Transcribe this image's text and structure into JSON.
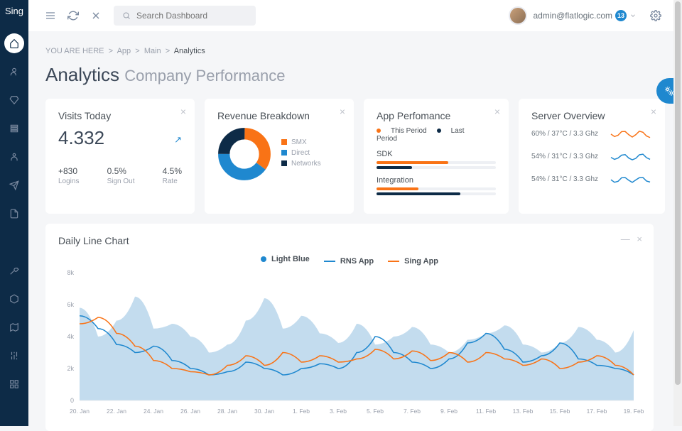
{
  "brand": "Sing",
  "search_placeholder": "Search Dashboard",
  "user": {
    "email": "admin@flatlogic.com",
    "badge": "13"
  },
  "breadcrumb": {
    "prefix": "YOU ARE HERE",
    "parts": [
      "App",
      "Main"
    ],
    "current": "Analytics"
  },
  "title": {
    "main": "Analytics",
    "sub": "Company Performance"
  },
  "visits": {
    "title": "Visits Today",
    "value": "4.332",
    "stats": [
      {
        "value": "+830",
        "label": "Logins"
      },
      {
        "value": "0.5%",
        "label": "Sign Out"
      },
      {
        "value": "4.5%",
        "label": "Rate"
      }
    ]
  },
  "revenue": {
    "title": "Revenue Breakdown",
    "donut": {
      "segments": [
        {
          "label": "SMX",
          "color": "#f97316",
          "pct": 35
        },
        {
          "label": "Direct",
          "color": "#1f88cf",
          "pct": 40
        },
        {
          "label": "Networks",
          "color": "#0d2b47",
          "pct": 25
        }
      ],
      "inner_color": "#ffffff"
    }
  },
  "performance": {
    "title": "App Perfomance",
    "legend": [
      {
        "label": "This Period",
        "color": "#f97316"
      },
      {
        "label": "Last Period",
        "color": "#0d2b47"
      }
    ],
    "items": [
      {
        "label": "SDK",
        "bars": [
          {
            "color": "#f97316",
            "pct": 60
          },
          {
            "color": "#0d2b47",
            "pct": 30
          }
        ]
      },
      {
        "label": "Integration",
        "bars": [
          {
            "color": "#f97316",
            "pct": 35
          },
          {
            "color": "#0d2b47",
            "pct": 70
          }
        ]
      }
    ]
  },
  "server": {
    "title": "Server Overview",
    "rows": [
      {
        "text": "60% / 37°C / 3.3 Ghz",
        "color": "#f97316"
      },
      {
        "text": "54% / 31°C / 3.3 Ghz",
        "color": "#1f88cf"
      },
      {
        "text": "54% / 31°C / 3.3 Ghz",
        "color": "#1f88cf"
      }
    ]
  },
  "line_chart": {
    "title_prefix": "Daily ",
    "title_bold": "Line Chart",
    "legend": [
      {
        "label": "Light Blue",
        "type": "dot",
        "color": "#1f88cf"
      },
      {
        "label": "RNS App",
        "type": "line",
        "color": "#1f88cf"
      },
      {
        "label": "Sing App",
        "type": "line",
        "color": "#f97316"
      }
    ],
    "y_ticks": [
      "0",
      "2k",
      "4k",
      "6k",
      "8k"
    ],
    "y_max": 8,
    "x_ticks": [
      "20. Jan",
      "22. Jan",
      "24. Jan",
      "26. Jan",
      "28. Jan",
      "30. Jan",
      "1. Feb",
      "3. Feb",
      "5. Feb",
      "7. Feb",
      "9. Feb",
      "11. Feb",
      "13. Feb",
      "15. Feb",
      "17. Feb",
      "19. Feb"
    ],
    "area_color": "#b8d6eb",
    "area": [
      5.8,
      4.0,
      5.0,
      6.5,
      4.5,
      4.8,
      4.0,
      3.0,
      3.5,
      5.0,
      6.4,
      4.5,
      5.3,
      4.2,
      3.6,
      4.8,
      3.5,
      4.0,
      4.6,
      3.5,
      3.0,
      3.8,
      4.2,
      4.7,
      3.5,
      3.0,
      3.6,
      4.6,
      3.8,
      3.0,
      4.4
    ],
    "rns_color": "#1f88cf",
    "rns": [
      5.3,
      4.5,
      3.5,
      3.0,
      3.4,
      2.5,
      2.0,
      1.6,
      1.8,
      2.4,
      2.0,
      1.6,
      2.0,
      2.3,
      2.0,
      3.0,
      4.0,
      3.0,
      2.4,
      2.0,
      2.6,
      3.6,
      4.2,
      3.2,
      2.4,
      2.8,
      3.6,
      2.6,
      2.2,
      2.0,
      1.6
    ],
    "sing_color": "#f97316",
    "sing": [
      4.8,
      5.2,
      4.2,
      3.4,
      2.5,
      2.0,
      1.8,
      1.6,
      2.2,
      2.8,
      2.2,
      3.0,
      2.4,
      2.8,
      2.4,
      2.6,
      3.2,
      2.6,
      3.1,
      2.5,
      3.0,
      2.4,
      3.0,
      2.6,
      2.2,
      2.6,
      2.0,
      2.4,
      2.8,
      2.2,
      1.6
    ]
  },
  "colors": {
    "sidebar": "#0d2b47",
    "accent": "#1f88cf",
    "orange": "#f97316"
  }
}
